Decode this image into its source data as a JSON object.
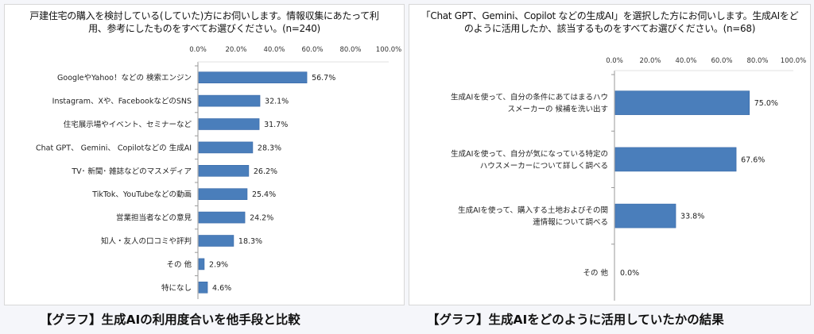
{
  "chart_data": [
    {
      "type": "bar",
      "orientation": "horizontal",
      "title": "戸建住宅の購入を検討している(していた)方にお伺いします。情報収集にあたって利用、参考にしたものをすべてお選びください。(n=240)",
      "categories": [
        "GoogleやYahoo！などの 検索エンジン",
        "Instagram、Xや、FacebookなどのSNS",
        "住宅展示場やイベント、セミナーなど",
        "Chat GPT、 Gemini、 Copilotなどの 生成AI",
        "TV･ 新聞･ 雑誌などのマスメディア",
        "TikTok、YouTubeなどの動画",
        "営業担当者などの意見",
        "知人・友人の口コミや評判",
        "その 他",
        "特になし"
      ],
      "values": [
        56.7,
        32.1,
        31.7,
        28.3,
        26.2,
        25.4,
        24.2,
        18.3,
        2.9,
        4.6
      ],
      "labels": [
        "56.7%",
        "32.1%",
        "31.7%",
        "28.3%",
        "26.2%",
        "25.4%",
        "24.2%",
        "18.3%",
        "2.9%",
        "4.6%"
      ],
      "xlim": [
        0,
        100
      ],
      "ticks": [
        "0.0%",
        "20.0%",
        "40.0%",
        "60.0%",
        "80.0%",
        "100.0%"
      ],
      "axis_position": "top",
      "grid": false,
      "bar_color": "#4a7ebb",
      "caption": "【グラフ】生成AIの利用度合いを他手段と比較"
    },
    {
      "type": "bar",
      "orientation": "horizontal",
      "title": "「Chat GPT、Gemini、Copilot などの生成AI」を選択した方にお伺いします。生成AIをどのように活用したか、該当するものをすべてお選びください。(n=68)",
      "categories": [
        [
          "生成AIを使って、自分の条件にあてはまるハウ",
          "スメーカーの 候補を洗い出す"
        ],
        [
          "生成AIを使って、自分が気になっている特定の",
          "ハウスメーカーについて詳しく調べる"
        ],
        [
          "生成AIを使って、購入する土地およびその関",
          "連情報について調べる"
        ],
        [
          "その 他"
        ]
      ],
      "values": [
        75.0,
        67.6,
        33.8,
        0.0
      ],
      "labels": [
        "75.0%",
        "67.6%",
        "33.8%",
        "0.0%"
      ],
      "xlim": [
        0,
        100
      ],
      "ticks": [
        "0.0%",
        "20.0%",
        "40.0%",
        "60.0%",
        "80.0%",
        "100.0%"
      ],
      "axis_position": "top",
      "grid": false,
      "bar_color": "#4a7ebb",
      "caption": "【グラフ】生成AIをどのように活用していたかの結果"
    }
  ]
}
